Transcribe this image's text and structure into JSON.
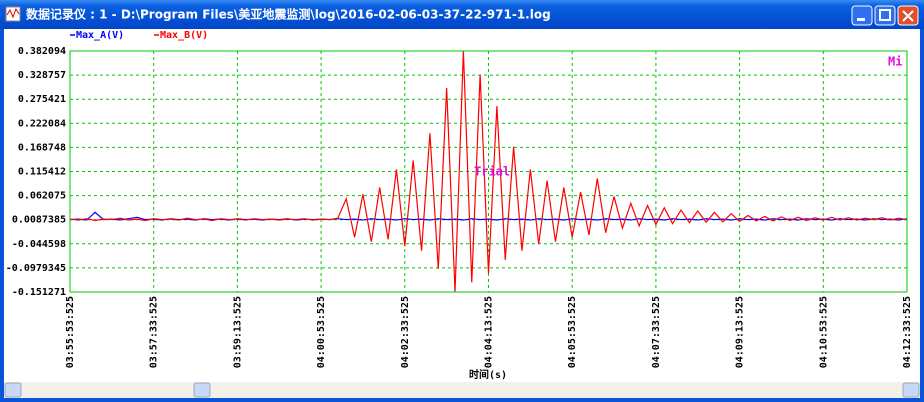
{
  "window": {
    "title": "数据记录仪 : 1 - D:\\Program Files\\美亚地震监测\\log\\2016-02-06-03-37-22-971-1.log"
  },
  "chart_data": {
    "type": "line",
    "x_label": "时间(s)",
    "annotations": [
      "Trial",
      "Mi"
    ],
    "legend": "top-left",
    "grid": true,
    "x": [
      "03:55:53:525",
      "03:56:03:525",
      "03:56:13:525",
      "03:56:23:525",
      "03:56:33:525",
      "03:56:43:525",
      "03:56:53:525",
      "03:57:03:525",
      "03:57:13:525",
      "03:57:23:525",
      "03:57:33:525",
      "03:57:43:525",
      "03:57:53:525",
      "03:58:03:525",
      "03:58:13:525",
      "03:58:23:525",
      "03:58:33:525",
      "03:58:43:525",
      "03:58:53:525",
      "03:59:03:525",
      "03:59:13:525",
      "03:59:23:525",
      "03:59:33:525",
      "03:59:43:525",
      "03:59:53:525",
      "04:00:03:525",
      "04:00:13:525",
      "04:00:23:525",
      "04:00:33:525",
      "04:00:43:525",
      "04:00:53:525",
      "04:01:03:525",
      "04:01:13:525",
      "04:01:23:525",
      "04:01:33:525",
      "04:01:43:525",
      "04:01:53:525",
      "04:02:03:525",
      "04:02:13:525",
      "04:02:23:525",
      "04:02:33:525",
      "04:02:43:525",
      "04:02:53:525",
      "04:03:03:525",
      "04:03:13:525",
      "04:03:23:525",
      "04:03:33:525",
      "04:03:43:525",
      "04:03:53:525",
      "04:04:03:525",
      "04:04:13:525",
      "04:04:23:525",
      "04:04:33:525",
      "04:04:43:525",
      "04:04:53:525",
      "04:05:03:525",
      "04:05:13:525",
      "04:05:23:525",
      "04:05:33:525",
      "04:05:43:525",
      "04:05:53:525",
      "04:06:03:525",
      "04:06:13:525",
      "04:06:23:525",
      "04:06:33:525",
      "04:06:43:525",
      "04:06:53:525",
      "04:07:03:525",
      "04:07:13:525",
      "04:07:23:525",
      "04:07:33:525",
      "04:07:43:525",
      "04:07:53:525",
      "04:08:03:525",
      "04:08:13:525",
      "04:08:23:525",
      "04:08:33:525",
      "04:08:43:525",
      "04:08:53:525",
      "04:09:03:525",
      "04:09:13:525",
      "04:09:23:525",
      "04:09:33:525",
      "04:09:43:525",
      "04:09:53:525",
      "04:10:03:525",
      "04:10:13:525",
      "04:10:23:525",
      "04:10:33:525",
      "04:10:43:525",
      "04:10:53:525",
      "04:11:03:525",
      "04:11:13:525",
      "04:11:23:525",
      "04:11:33:525",
      "04:11:43:525",
      "04:11:53:525",
      "04:12:03:525",
      "04:12:13:525",
      "04:12:23:525",
      "04:12:33:525"
    ],
    "series": [
      {
        "name": "Max_A(V)",
        "color": "#0000ff",
        "values": [
          0.009,
          0.01,
          0.008,
          0.025,
          0.009,
          0.01,
          0.008,
          0.011,
          0.014,
          0.009,
          0.01,
          0.008,
          0.011,
          0.009,
          0.01,
          0.008,
          0.011,
          0.009,
          0.01,
          0.008,
          0.011,
          0.009,
          0.01,
          0.008,
          0.01,
          0.009,
          0.011,
          0.008,
          0.01,
          0.009,
          0.01,
          0.009,
          0.011,
          0.009,
          0.01,
          0.008,
          0.011,
          0.009,
          0.01,
          0.008,
          0.011,
          0.009,
          0.01,
          0.008,
          0.011,
          0.009,
          0.01,
          0.008,
          0.011,
          0.009,
          0.01,
          0.008,
          0.011,
          0.009,
          0.01,
          0.008,
          0.011,
          0.009,
          0.01,
          0.008,
          0.011,
          0.009,
          0.01,
          0.008,
          0.011,
          0.009,
          0.01,
          0.008,
          0.011,
          0.009,
          0.01,
          0.008,
          0.011,
          0.009,
          0.01,
          0.008,
          0.011,
          0.009,
          0.01,
          0.008,
          0.011,
          0.009,
          0.01,
          0.008,
          0.011,
          0.009,
          0.01,
          0.008,
          0.011,
          0.009,
          0.01,
          0.008,
          0.011,
          0.009,
          0.01,
          0.008,
          0.011,
          0.009,
          0.01,
          0.008,
          0.011
        ]
      },
      {
        "name": "Max_B(V)",
        "color": "#ff0000",
        "values": [
          0.01,
          0.008,
          0.011,
          0.007,
          0.01,
          0.009,
          0.012,
          0.008,
          0.01,
          0.007,
          0.011,
          0.009,
          0.01,
          0.008,
          0.012,
          0.009,
          0.01,
          0.007,
          0.011,
          0.009,
          0.01,
          0.008,
          0.011,
          0.009,
          0.01,
          0.008,
          0.01,
          0.009,
          0.011,
          0.008,
          0.01,
          0.009,
          0.012,
          0.055,
          -0.03,
          0.065,
          -0.04,
          0.08,
          -0.035,
          0.12,
          -0.05,
          0.14,
          -0.06,
          0.2,
          -0.1,
          0.3,
          -0.151,
          0.382,
          -0.13,
          0.33,
          -0.11,
          0.26,
          -0.08,
          0.17,
          -0.06,
          0.12,
          -0.045,
          0.095,
          -0.04,
          0.08,
          -0.03,
          0.07,
          -0.025,
          0.1,
          -0.02,
          0.06,
          -0.01,
          0.045,
          -0.005,
          0.04,
          -0.002,
          0.035,
          0.0,
          0.03,
          0.002,
          0.028,
          0.003,
          0.025,
          0.004,
          0.022,
          0.005,
          0.018,
          0.006,
          0.016,
          0.006,
          0.015,
          0.007,
          0.014,
          0.007,
          0.013,
          0.008,
          0.014,
          0.008,
          0.013,
          0.008,
          0.012,
          0.009,
          0.013,
          0.008,
          0.012,
          0.009
        ]
      }
    ],
    "xlim": [
      "03:55:53:525",
      "04:12:33:525"
    ],
    "xticks": [
      "03:55:53:525",
      "03:57:33:525",
      "03:59:13:525",
      "04:00:53:525",
      "04:02:33:525",
      "04:04:13:525",
      "04:05:53:525",
      "04:07:33:525",
      "04:09:13:525",
      "04:10:53:525",
      "04:12:33:525"
    ],
    "ylim": [
      -0.151271,
      0.382094
    ],
    "yticks": [
      0.382094,
      0.328757,
      0.275421,
      0.222084,
      0.168748,
      0.115412,
      0.062075,
      0.0087385,
      -0.044598,
      -0.0979345,
      -0.151271
    ]
  }
}
